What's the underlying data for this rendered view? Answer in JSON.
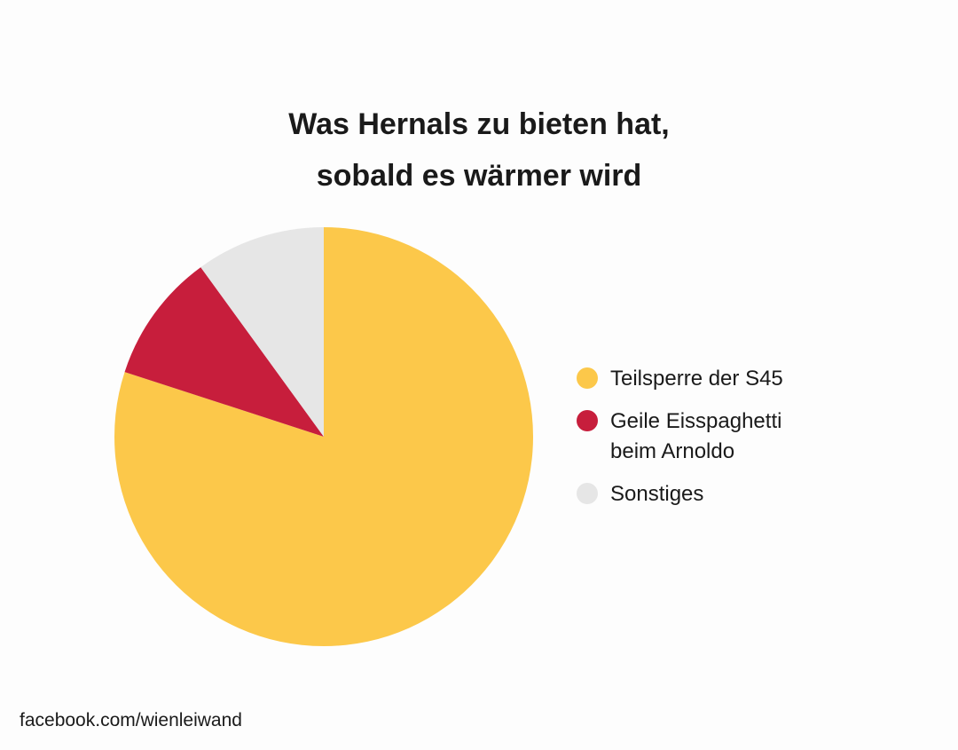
{
  "chart_data": {
    "type": "pie",
    "title": "Was Hernals zu bieten hat,\nsobald es wärmer wird",
    "slices": [
      {
        "label": "Teilsperre der S45",
        "value": 80,
        "color": "#fcc84a"
      },
      {
        "label": "Geile Eisspaghetti\nbeim Arnoldo",
        "value": 10,
        "color": "#c71e3c"
      },
      {
        "label": "Sonstiges",
        "value": 10,
        "color": "#e6e6e6"
      }
    ],
    "start_angle": "12 o'clock",
    "direction": "clockwise",
    "legend_position": "right"
  },
  "credit": "facebook.com/wienleiwand"
}
